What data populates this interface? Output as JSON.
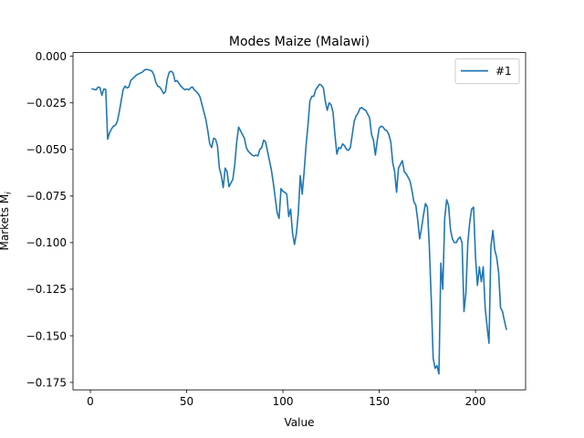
{
  "chart_data": {
    "type": "line",
    "title": "Modes Maize (Malawi)",
    "xlabel": "Value",
    "ylabel": "Markets M",
    "ylabel_sub": "i",
    "xlim": [
      -9,
      226
    ],
    "ylim": [
      -0.179,
      0.002
    ],
    "x_ticks": [
      0,
      50,
      100,
      150,
      200
    ],
    "y_ticks": [
      0.0,
      -0.025,
      -0.05,
      -0.075,
      -0.1,
      -0.125,
      -0.15,
      -0.175
    ],
    "y_tick_labels": [
      "0.000",
      "−0.025",
      "−0.050",
      "−0.075",
      "−0.100",
      "−0.125",
      "−0.150",
      "−0.175"
    ],
    "legend_position": "upper right",
    "series": [
      {
        "name": "#1",
        "color": "#1f77b4",
        "points": [
          [
            1,
            -0.0175
          ],
          [
            2,
            -0.0178
          ],
          [
            3,
            -0.018
          ],
          [
            4,
            -0.0165
          ],
          [
            5,
            -0.0168
          ],
          [
            6,
            -0.021
          ],
          [
            7,
            -0.0175
          ],
          [
            8,
            -0.0178
          ],
          [
            9,
            -0.0445
          ],
          [
            10,
            -0.041
          ],
          [
            11,
            -0.039
          ],
          [
            12,
            -0.0375
          ],
          [
            13,
            -0.037
          ],
          [
            14,
            -0.035
          ],
          [
            15,
            -0.03
          ],
          [
            16,
            -0.024
          ],
          [
            17,
            -0.018
          ],
          [
            18,
            -0.016
          ],
          [
            19,
            -0.017
          ],
          [
            20,
            -0.0165
          ],
          [
            21,
            -0.013
          ],
          [
            22,
            -0.012
          ],
          [
            23,
            -0.011
          ],
          [
            24,
            -0.01
          ],
          [
            25,
            -0.0095
          ],
          [
            26,
            -0.009
          ],
          [
            27,
            -0.0085
          ],
          [
            28,
            -0.0075
          ],
          [
            29,
            -0.007
          ],
          [
            30,
            -0.0072
          ],
          [
            31,
            -0.0075
          ],
          [
            32,
            -0.008
          ],
          [
            33,
            -0.01
          ],
          [
            34,
            -0.014
          ],
          [
            35,
            -0.016
          ],
          [
            36,
            -0.0165
          ],
          [
            37,
            -0.018
          ],
          [
            38,
            -0.02
          ],
          [
            39,
            -0.019
          ],
          [
            40,
            -0.012
          ],
          [
            41,
            -0.0085
          ],
          [
            42,
            -0.008
          ],
          [
            43,
            -0.009
          ],
          [
            44,
            -0.0135
          ],
          [
            45,
            -0.013
          ],
          [
            46,
            -0.0145
          ],
          [
            47,
            -0.016
          ],
          [
            48,
            -0.017
          ],
          [
            49,
            -0.018
          ],
          [
            50,
            -0.0175
          ],
          [
            51,
            -0.018
          ],
          [
            52,
            -0.017
          ],
          [
            53,
            -0.0165
          ],
          [
            54,
            -0.018
          ],
          [
            55,
            -0.019
          ],
          [
            56,
            -0.02
          ],
          [
            57,
            -0.022
          ],
          [
            58,
            -0.026
          ],
          [
            59,
            -0.03
          ],
          [
            60,
            -0.034
          ],
          [
            61,
            -0.04
          ],
          [
            62,
            -0.047
          ],
          [
            63,
            -0.049
          ],
          [
            64,
            -0.044
          ],
          [
            65,
            -0.0445
          ],
          [
            66,
            -0.048
          ],
          [
            67,
            -0.06
          ],
          [
            68,
            -0.064
          ],
          [
            69,
            -0.0705
          ],
          [
            70,
            -0.06
          ],
          [
            71,
            -0.062
          ],
          [
            72,
            -0.07
          ],
          [
            73,
            -0.068
          ],
          [
            74,
            -0.066
          ],
          [
            75,
            -0.058
          ],
          [
            76,
            -0.046
          ],
          [
            77,
            -0.038
          ],
          [
            78,
            -0.04
          ],
          [
            79,
            -0.042
          ],
          [
            80,
            -0.044
          ],
          [
            81,
            -0.049
          ],
          [
            82,
            -0.051
          ],
          [
            83,
            -0.052
          ],
          [
            84,
            -0.053
          ],
          [
            85,
            -0.0535
          ],
          [
            86,
            -0.053
          ],
          [
            87,
            -0.0535
          ],
          [
            88,
            -0.05
          ],
          [
            89,
            -0.049
          ],
          [
            90,
            -0.045
          ],
          [
            91,
            -0.046
          ],
          [
            92,
            -0.051
          ],
          [
            93,
            -0.056
          ],
          [
            94,
            -0.061
          ],
          [
            95,
            -0.068
          ],
          [
            96,
            -0.076
          ],
          [
            97,
            -0.084
          ],
          [
            98,
            -0.087
          ],
          [
            99,
            -0.071
          ],
          [
            100,
            -0.0725
          ],
          [
            101,
            -0.073
          ],
          [
            102,
            -0.074
          ],
          [
            103,
            -0.086
          ],
          [
            104,
            -0.082
          ],
          [
            105,
            -0.095
          ],
          [
            106,
            -0.101
          ],
          [
            107,
            -0.095
          ],
          [
            108,
            -0.084
          ],
          [
            109,
            -0.064
          ],
          [
            110,
            -0.074
          ],
          [
            111,
            -0.062
          ],
          [
            112,
            -0.048
          ],
          [
            113,
            -0.037
          ],
          [
            114,
            -0.024
          ],
          [
            115,
            -0.0215
          ],
          [
            116,
            -0.0215
          ],
          [
            117,
            -0.018
          ],
          [
            118,
            -0.0165
          ],
          [
            119,
            -0.015
          ],
          [
            120,
            -0.0155
          ],
          [
            121,
            -0.017
          ],
          [
            122,
            -0.024
          ],
          [
            123,
            -0.029
          ],
          [
            124,
            -0.025
          ],
          [
            125,
            -0.026
          ],
          [
            126,
            -0.03
          ],
          [
            127,
            -0.042
          ],
          [
            128,
            -0.0525
          ],
          [
            129,
            -0.049
          ],
          [
            130,
            -0.0495
          ],
          [
            131,
            -0.047
          ],
          [
            132,
            -0.048
          ],
          [
            133,
            -0.05
          ],
          [
            134,
            -0.0505
          ],
          [
            135,
            -0.049
          ],
          [
            136,
            -0.042
          ],
          [
            137,
            -0.035
          ],
          [
            138,
            -0.032
          ],
          [
            139,
            -0.0305
          ],
          [
            140,
            -0.028
          ],
          [
            141,
            -0.0275
          ],
          [
            142,
            -0.0285
          ],
          [
            143,
            -0.029
          ],
          [
            144,
            -0.031
          ],
          [
            145,
            -0.033
          ],
          [
            146,
            -0.042
          ],
          [
            147,
            -0.045
          ],
          [
            148,
            -0.053
          ],
          [
            149,
            -0.045
          ],
          [
            150,
            -0.0385
          ],
          [
            151,
            -0.0375
          ],
          [
            152,
            -0.038
          ],
          [
            153,
            -0.0395
          ],
          [
            154,
            -0.04
          ],
          [
            155,
            -0.042
          ],
          [
            156,
            -0.046
          ],
          [
            157,
            -0.057
          ],
          [
            158,
            -0.062
          ],
          [
            159,
            -0.073
          ],
          [
            160,
            -0.06
          ],
          [
            161,
            -0.058
          ],
          [
            162,
            -0.056
          ],
          [
            163,
            -0.062
          ],
          [
            164,
            -0.063
          ],
          [
            165,
            -0.065
          ],
          [
            166,
            -0.067
          ],
          [
            167,
            -0.072
          ],
          [
            168,
            -0.078
          ],
          [
            169,
            -0.08
          ],
          [
            170,
            -0.088
          ],
          [
            171,
            -0.098
          ],
          [
            172,
            -0.092
          ],
          [
            173,
            -0.085
          ],
          [
            174,
            -0.079
          ],
          [
            175,
            -0.081
          ],
          [
            176,
            -0.102
          ],
          [
            177,
            -0.13
          ],
          [
            178,
            -0.162
          ],
          [
            179,
            -0.1675
          ],
          [
            180,
            -0.166
          ],
          [
            181,
            -0.1705
          ],
          [
            182,
            -0.111
          ],
          [
            183,
            -0.125
          ],
          [
            184,
            -0.087
          ],
          [
            185,
            -0.077
          ],
          [
            186,
            -0.08
          ],
          [
            187,
            -0.093
          ],
          [
            188,
            -0.098
          ],
          [
            189,
            -0.1
          ],
          [
            190,
            -0.1
          ],
          [
            191,
            -0.098
          ],
          [
            192,
            -0.097
          ],
          [
            193,
            -0.1
          ],
          [
            194,
            -0.137
          ],
          [
            195,
            -0.127
          ],
          [
            196,
            -0.1
          ],
          [
            197,
            -0.089
          ],
          [
            198,
            -0.082
          ],
          [
            199,
            -0.081
          ],
          [
            200,
            -0.108
          ],
          [
            201,
            -0.123
          ],
          [
            202,
            -0.113
          ],
          [
            203,
            -0.121
          ],
          [
            204,
            -0.113
          ],
          [
            205,
            -0.135
          ],
          [
            206,
            -0.145
          ],
          [
            207,
            -0.154
          ],
          [
            208,
            -0.102
          ],
          [
            209,
            -0.0935
          ],
          [
            210,
            -0.104
          ],
          [
            211,
            -0.108
          ],
          [
            212,
            -0.116
          ],
          [
            213,
            -0.135
          ],
          [
            214,
            -0.137
          ],
          [
            215,
            -0.142
          ],
          [
            216,
            -0.1465
          ]
        ]
      }
    ]
  }
}
